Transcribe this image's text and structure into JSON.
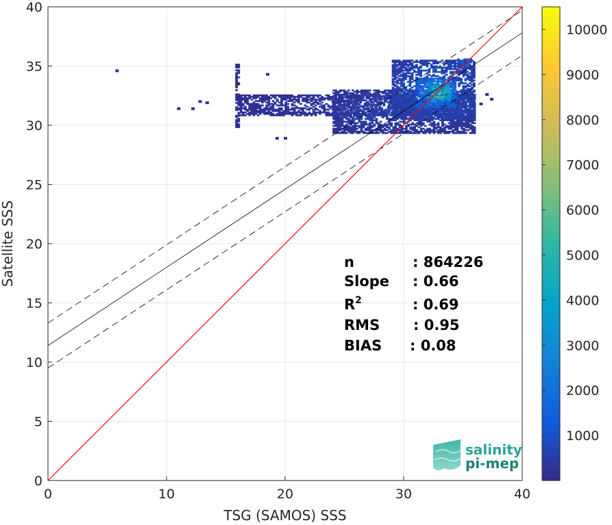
{
  "chart_data": {
    "type": "heatmap",
    "xlabel": "TSG (SAMOS) SSS",
    "ylabel": "Satellite SSS",
    "xlim": [
      0,
      40
    ],
    "ylim": [
      0,
      40
    ],
    "x_ticks": [
      0,
      10,
      20,
      30,
      40
    ],
    "y_ticks": [
      0,
      5,
      10,
      15,
      20,
      25,
      30,
      35,
      40
    ],
    "grid": true,
    "colormap": "parula",
    "colorbar": {
      "range": [
        1,
        10500
      ],
      "ticks": [
        1000,
        2000,
        3000,
        4000,
        5000,
        6000,
        7000,
        8000,
        9000,
        10000
      ],
      "colors": [
        "#352a87",
        "#0f5cdd",
        "#1481d6",
        "#06a4ca",
        "#2eb7a4",
        "#87bf77",
        "#d1bb59",
        "#fec832",
        "#f9fb0e"
      ]
    },
    "reference_line": {
      "name": "1:1",
      "color": "#ff0000",
      "x": [
        0,
        40
      ],
      "y": [
        0,
        40
      ]
    },
    "fit_line": {
      "slope": 0.66,
      "intercept": 11.4,
      "color": "#000000"
    },
    "fit_bounds": {
      "offset": 1.9,
      "style": "dashed",
      "color": "#000000"
    },
    "density_clusters": [
      {
        "x": [
          15.8,
          16.2
        ],
        "y": [
          29.8,
          35.2
        ],
        "level": 150
      },
      {
        "x": [
          16,
          35
        ],
        "y": [
          30.8,
          32.6
        ],
        "level": 300
      },
      {
        "x": [
          24,
          36
        ],
        "y": [
          29.3,
          33.0
        ],
        "level": 500
      },
      {
        "x": [
          29,
          36
        ],
        "y": [
          30.5,
          35.5
        ],
        "level": 900
      },
      {
        "x": [
          31,
          34.5
        ],
        "y": [
          31.5,
          34.0
        ],
        "level": 2500
      },
      {
        "x": [
          32,
          34
        ],
        "y": [
          32.0,
          33.5
        ],
        "level": 4500
      },
      {
        "x": [
          33.2,
          33.8
        ],
        "y": [
          32.7,
          33.2
        ],
        "level": 6500
      },
      {
        "x": [
          34.5,
          35.8
        ],
        "y": [
          34.8,
          35.6
        ],
        "level": 1500
      }
    ],
    "scatter_points": [
      {
        "x": 5.8,
        "y": 34.6
      },
      {
        "x": 11.0,
        "y": 31.4
      },
      {
        "x": 12.2,
        "y": 31.4
      },
      {
        "x": 12.8,
        "y": 32.0
      },
      {
        "x": 13.4,
        "y": 31.9
      },
      {
        "x": 18.5,
        "y": 34.3
      },
      {
        "x": 19.3,
        "y": 28.9
      },
      {
        "x": 20.0,
        "y": 28.9
      },
      {
        "x": 36.5,
        "y": 31.8
      },
      {
        "x": 37.4,
        "y": 32.2
      },
      {
        "x": 37.0,
        "y": 32.6
      }
    ],
    "stats": [
      {
        "label": "n",
        "value": ": 864226"
      },
      {
        "label": "Slope",
        "value": ": 0.66"
      },
      {
        "label": "R",
        "sup": "2",
        "value": ": 0.69"
      },
      {
        "label": "RMS",
        "value": ": 0.95"
      },
      {
        "label": "BIAS",
        "value": ": 0.08"
      }
    ]
  },
  "logo": {
    "line1": "salinity",
    "line2": "pi-mep",
    "color1": "#2aa39a",
    "color2": "#1f7f78"
  }
}
